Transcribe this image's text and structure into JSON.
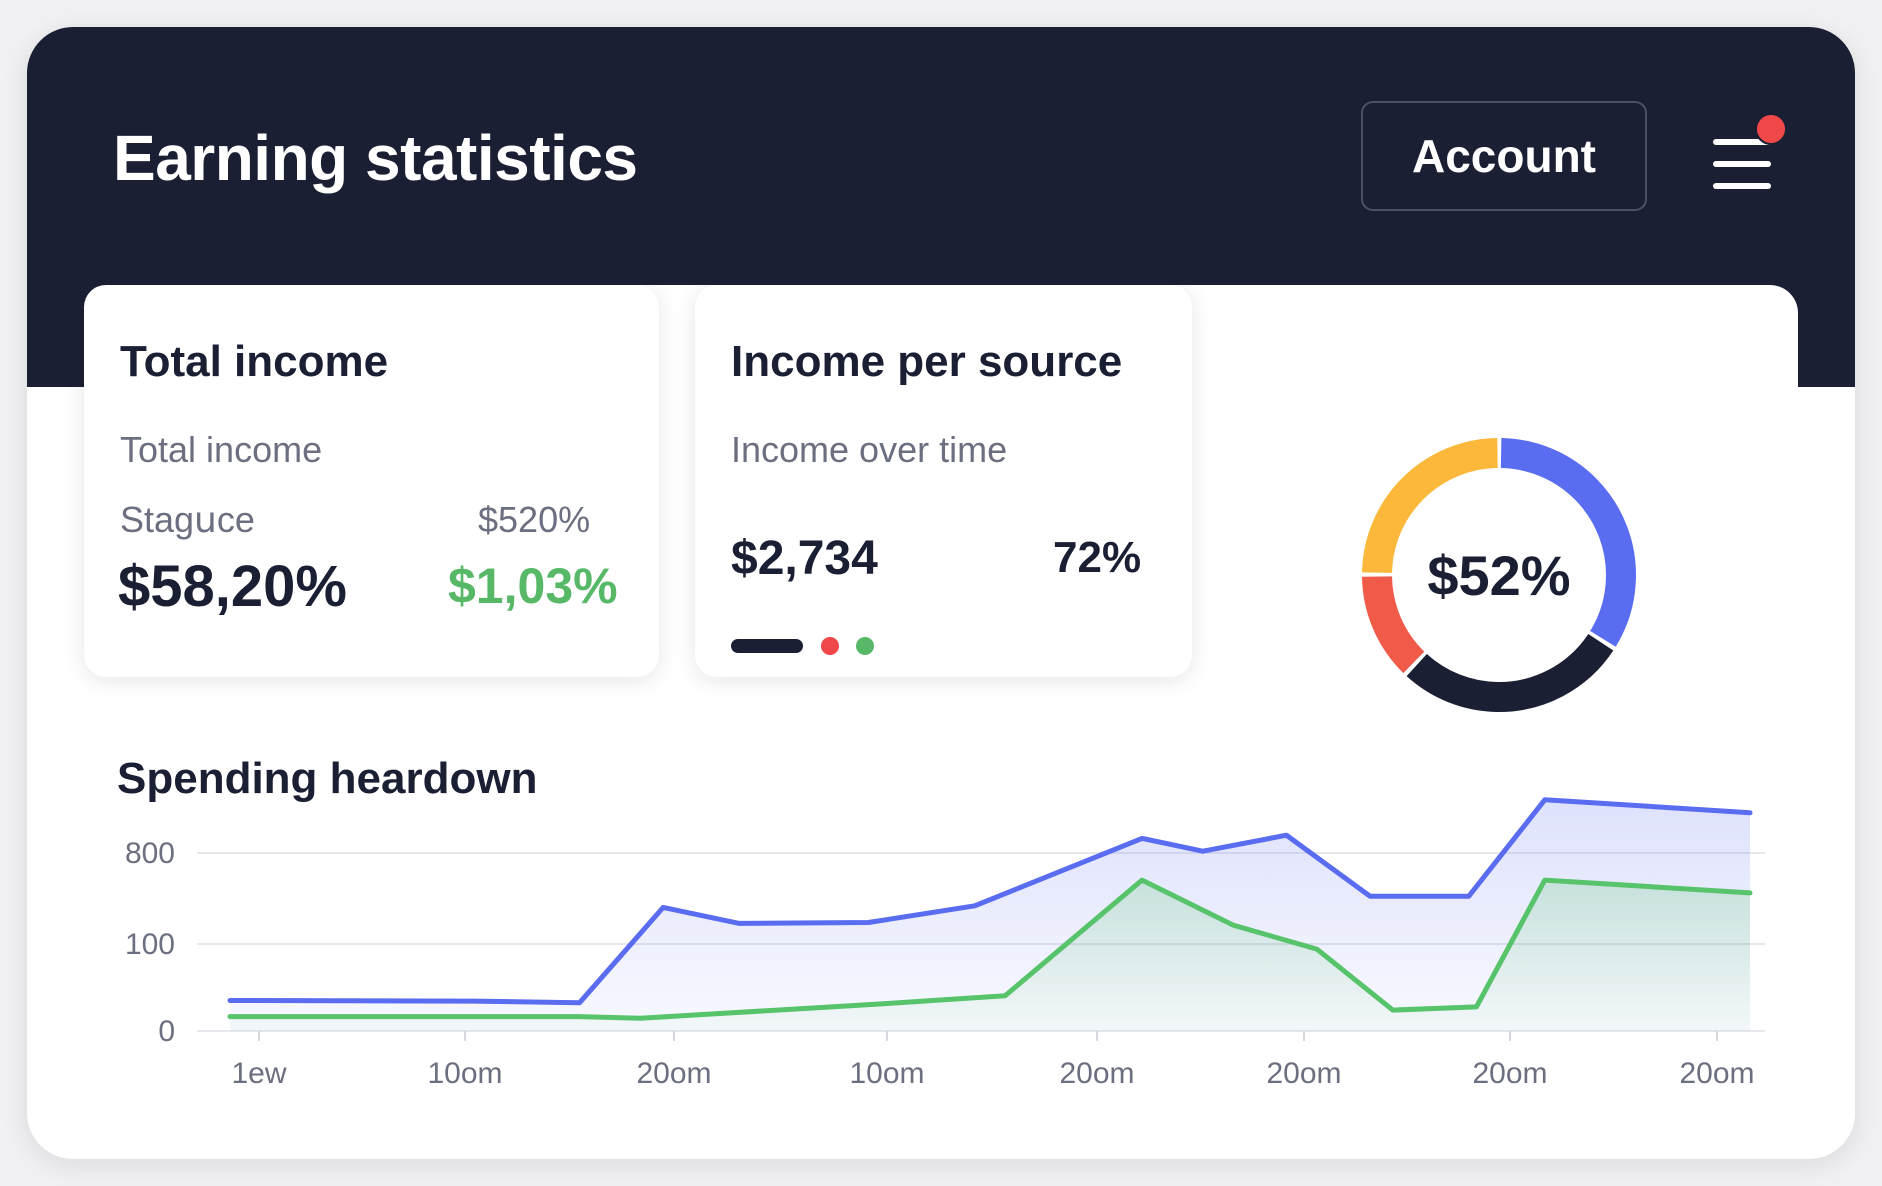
{
  "header": {
    "title": "Earning statistics",
    "account_label": "Account",
    "menu_icon": "hamburger-menu-icon",
    "notification_color": "#f04848"
  },
  "total_income": {
    "title": "Total income",
    "subtitle": "Total income",
    "label_left": "Stagսce",
    "label_right": "$520%",
    "value_main": "$58,20%",
    "value_secondary": "$1,03%"
  },
  "income_source": {
    "title": "Income per source",
    "subtitle": "Income over time",
    "value": "$2,734",
    "percent": "72%",
    "indicator_colors": [
      "#1a1f33",
      "#f04848",
      "#57b967"
    ]
  },
  "donut": {
    "center_label": "$52%",
    "segments": [
      {
        "color": "#5a6cf0",
        "fraction": 0.34
      },
      {
        "color": "#1a1f33",
        "fraction": 0.28
      },
      {
        "color": "#f05a48",
        "fraction": 0.13
      },
      {
        "color": "#fbb83a",
        "fraction": 0.25
      }
    ]
  },
  "colors": {
    "dark": "#1a1f33",
    "blue": "#5a6cf0",
    "green": "#57c36a",
    "red": "#f04848",
    "orange": "#fbb83a"
  },
  "chart_data": {
    "type": "area",
    "title": "Spending heardown",
    "y_tick_labels": [
      "0",
      "100",
      "800"
    ],
    "x_tick_labels": [
      "1ew",
      "10om",
      "20om",
      "10om",
      "20om",
      "20om",
      "20om",
      "20om"
    ],
    "grid": "horizontal",
    "series": [
      {
        "color": "#5a6cf0",
        "values": [
          [
            0,
            95
          ],
          [
            0.16,
            93
          ],
          [
            0.23,
            88
          ],
          [
            0.285,
            385
          ],
          [
            0.335,
            335
          ],
          [
            0.42,
            338
          ],
          [
            0.49,
            390
          ],
          [
            0.6,
            600
          ],
          [
            0.64,
            560
          ],
          [
            0.695,
            610
          ],
          [
            0.75,
            420
          ],
          [
            0.815,
            420
          ],
          [
            0.865,
            720
          ],
          [
            1.0,
            680
          ]
        ]
      },
      {
        "color": "#57c36a",
        "values": [
          [
            0,
            45
          ],
          [
            0.23,
            45
          ],
          [
            0.27,
            40
          ],
          [
            0.36,
            65
          ],
          [
            0.43,
            85
          ],
          [
            0.51,
            110
          ],
          [
            0.6,
            470
          ],
          [
            0.66,
            330
          ],
          [
            0.715,
            255
          ],
          [
            0.765,
            65
          ],
          [
            0.82,
            75
          ],
          [
            0.865,
            470
          ],
          [
            1.0,
            430
          ]
        ]
      }
    ]
  }
}
